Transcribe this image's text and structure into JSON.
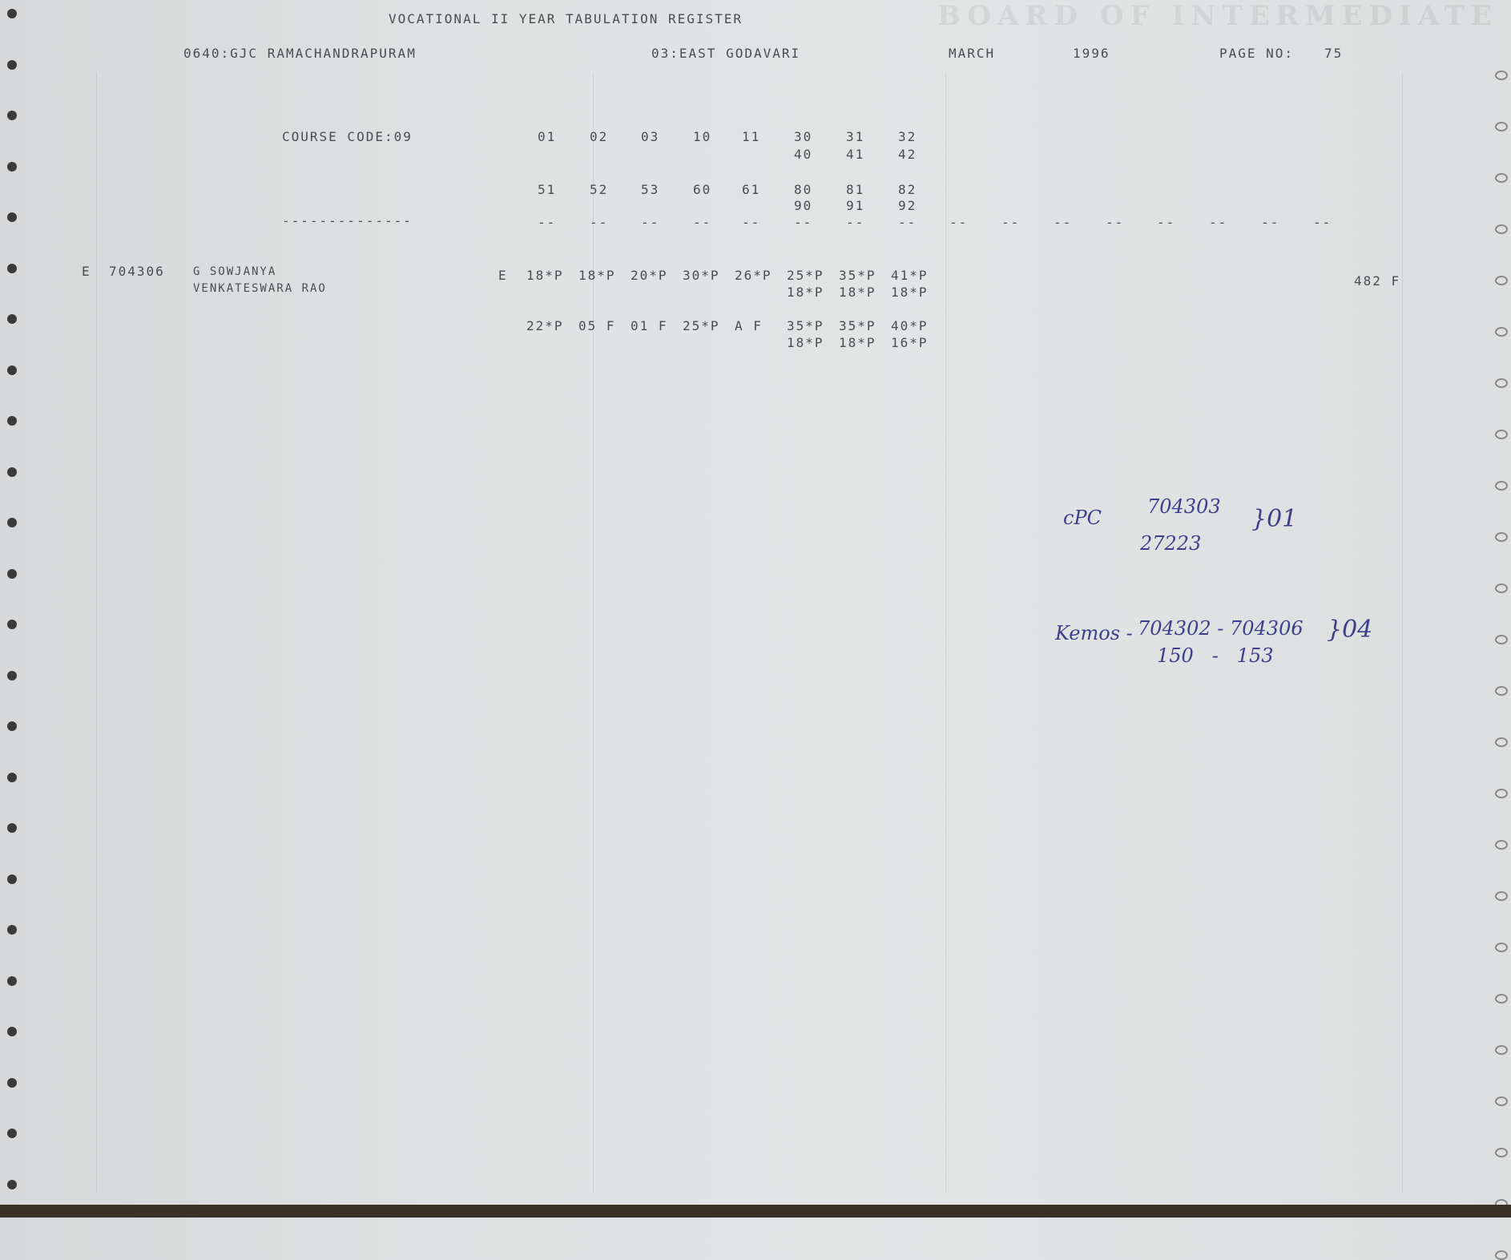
{
  "header": {
    "title": "VOCATIONAL II YEAR TABULATION REGISTER",
    "college": "0640:GJC RAMACHANDRAPURAM",
    "district": "03:EAST GODAVARI",
    "month": "MARCH",
    "year": "1996",
    "page_label": "PAGE NO:",
    "page_no": "75",
    "watermark": "BOARD OF INTERMEDIATE EDUCATION A.P. HYDERABAD"
  },
  "course": {
    "label": "COURSE CODE:09",
    "underline": "--------------",
    "codes_row1": [
      "01",
      "02",
      "03",
      "10",
      "11",
      "30",
      "31",
      "32"
    ],
    "codes_row2": [
      "40",
      "41",
      "42"
    ],
    "codes_row3": [
      "51",
      "52",
      "53",
      "60",
      "61",
      "80",
      "81",
      "82"
    ],
    "codes_row4": [
      "90",
      "91",
      "92"
    ],
    "dashes": [
      "--",
      "--",
      "--",
      "--",
      "--",
      "--",
      "--",
      "--",
      "--",
      "--",
      "--",
      "--",
      "--",
      "--",
      "--",
      "--"
    ]
  },
  "student": {
    "type": "E",
    "hall_ticket": "704306",
    "name": "G SOWJANYA",
    "father": "VENKATESWARA RAO",
    "medium": "E",
    "marks_row1": [
      "18*P",
      "18*P",
      "20*P",
      "30*P",
      "26*P",
      "25*P",
      "35*P",
      "41*P"
    ],
    "marks_row2": [
      "18*P",
      "18*P",
      "18*P"
    ],
    "marks_row3": [
      "22*P",
      "05 F",
      "01 F",
      "25*P",
      "A F",
      "35*P",
      "35*P",
      "40*P"
    ],
    "marks_row4": [
      "18*P",
      "18*P",
      "16*P"
    ],
    "total": "482 F"
  },
  "handwritten": {
    "line1_label": "cPC",
    "line1_a": "704303",
    "line1_b": "27223",
    "line1_count": "}01",
    "line2_label": "Kemos -",
    "line2_a": "704302 - 704306",
    "line2_b": "150   -   153",
    "line2_count": "}04"
  }
}
